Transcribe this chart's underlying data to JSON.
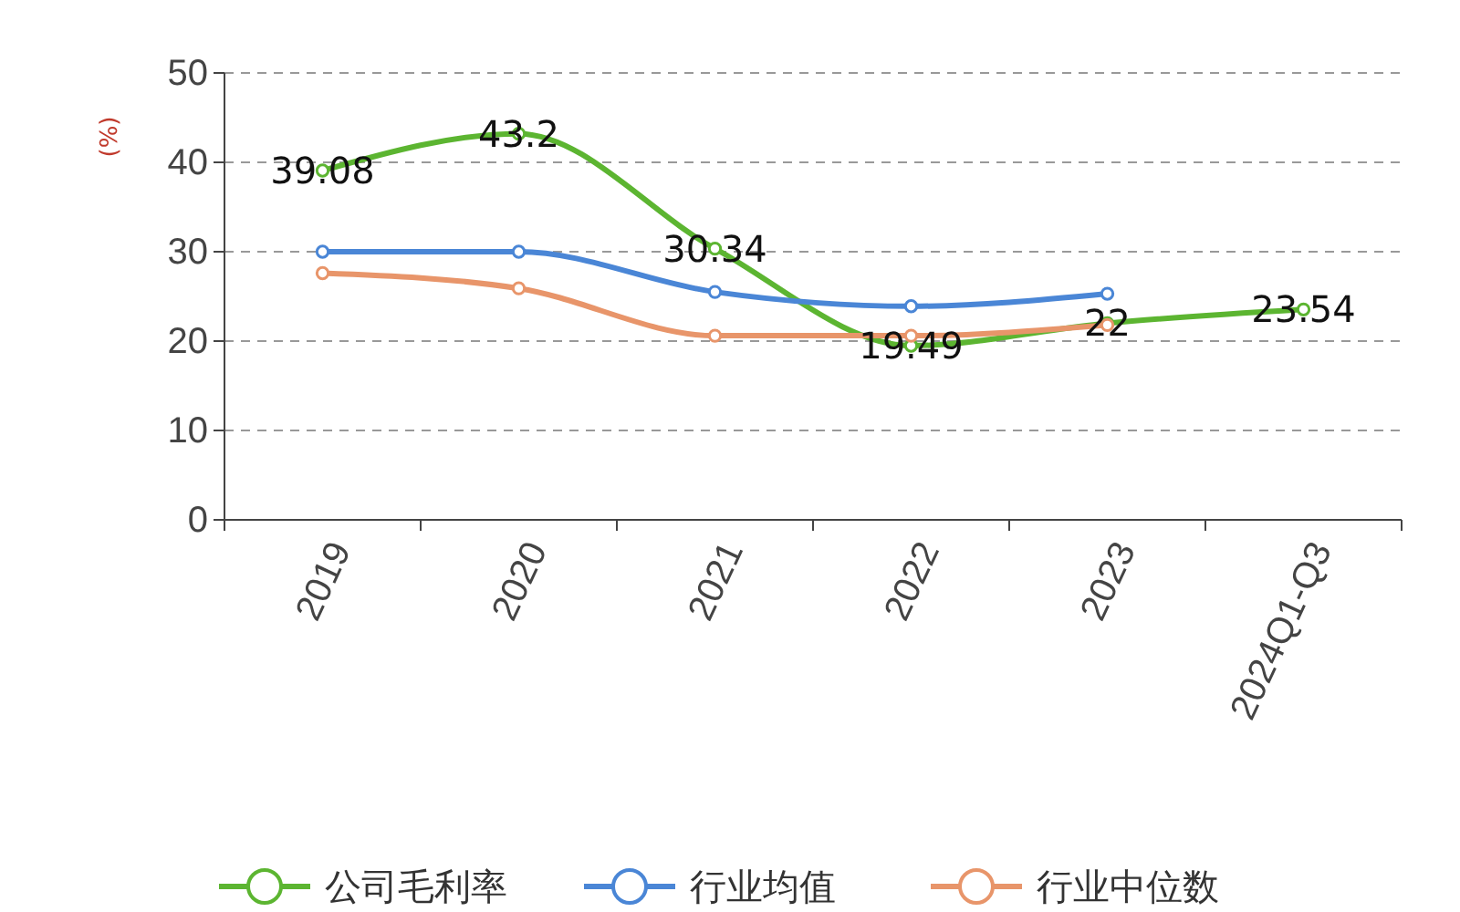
{
  "chart_data": {
    "type": "line",
    "ylabel": "(%)",
    "categories": [
      "2019",
      "2020",
      "2021",
      "2022",
      "2023",
      "2024Q1-Q3"
    ],
    "series": [
      {
        "name": "公司毛利率",
        "color": "#5cb531",
        "values": [
          39.08,
          43.2,
          30.34,
          19.49,
          22,
          23.54
        ],
        "value_labels": [
          "39.08",
          "43.2",
          "30.34",
          "19.49",
          "22",
          "23.54"
        ]
      },
      {
        "name": "行业均值",
        "color": "#4a86d6",
        "values": [
          30,
          30,
          25.5,
          23.9,
          25.3,
          null
        ]
      },
      {
        "name": "行业中位数",
        "color": "#e8956a",
        "values": [
          27.6,
          25.9,
          20.6,
          20.6,
          21.8,
          null
        ]
      }
    ],
    "ylim": [
      0,
      50
    ],
    "yticks": [
      0,
      10,
      20,
      30,
      40,
      50
    ],
    "grid": "y",
    "legend": "bottom",
    "marker": "circle",
    "line_style": "solid"
  }
}
